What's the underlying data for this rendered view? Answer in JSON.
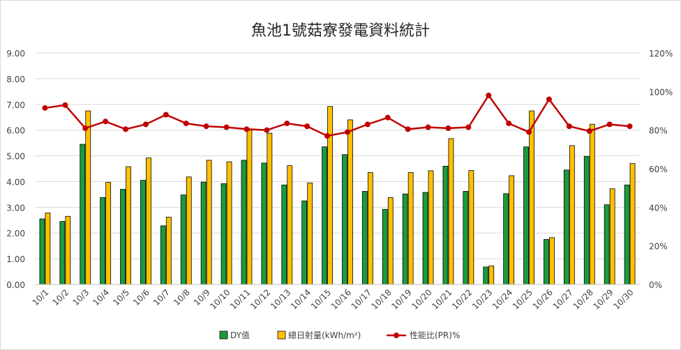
{
  "chart_data": {
    "type": "bar",
    "title": "魚池1號菇寮發電資料統計",
    "categories": [
      "10/1",
      "10/2",
      "10/3",
      "10/4",
      "10/5",
      "10/6",
      "10/7",
      "10/8",
      "10/9",
      "10/10",
      "10/11",
      "10/12",
      "10/13",
      "10/14",
      "10/15",
      "10/16",
      "10/17",
      "10/18",
      "10/19",
      "10/20",
      "10/21",
      "10/22",
      "10/23",
      "10/24",
      "10/25",
      "10/26",
      "10/27",
      "10/28",
      "10/29",
      "10/30"
    ],
    "y_left": {
      "min": 0,
      "max": 9,
      "step": 1,
      "ticks": [
        "0.00",
        "1.00",
        "2.00",
        "3.00",
        "4.00",
        "5.00",
        "6.00",
        "7.00",
        "8.00",
        "9.00"
      ]
    },
    "y_right": {
      "min": 0,
      "max": 120,
      "step": 20,
      "ticks": [
        "0%",
        "20%",
        "40%",
        "60%",
        "80%",
        "100%",
        "120%"
      ]
    },
    "grid": true,
    "legend_position": "bottom",
    "series": [
      {
        "name": "DY值",
        "type": "bar",
        "axis": "left",
        "color": "#1a9c3e",
        "values": [
          2.55,
          2.45,
          5.45,
          3.38,
          3.7,
          4.05,
          2.28,
          3.48,
          3.98,
          3.92,
          4.83,
          4.72,
          3.87,
          3.25,
          5.35,
          5.05,
          3.62,
          2.92,
          3.52,
          3.58,
          4.6,
          3.62,
          0.68,
          3.53,
          5.35,
          1.75,
          4.45,
          4.98,
          3.1,
          3.87
        ]
      },
      {
        "name": "總日射量(kWh/m²)",
        "type": "bar",
        "axis": "left",
        "color": "#ffc000",
        "values": [
          2.78,
          2.65,
          6.75,
          3.97,
          4.58,
          4.92,
          2.62,
          4.18,
          4.83,
          4.77,
          6.0,
          5.88,
          4.62,
          3.95,
          6.92,
          6.4,
          4.35,
          3.38,
          4.35,
          4.42,
          5.67,
          4.43,
          0.72,
          4.23,
          6.75,
          1.82,
          5.4,
          6.23,
          3.72,
          4.7
        ]
      },
      {
        "name": "性能比(PR)%",
        "type": "line",
        "axis": "right",
        "color": "#c00000",
        "values": [
          91.5,
          93,
          81,
          84.5,
          80.5,
          83,
          88,
          83.5,
          82,
          81.5,
          80.5,
          80,
          83.5,
          82,
          77,
          79,
          83,
          86.5,
          80.5,
          81.5,
          81,
          81.5,
          98,
          83.5,
          79,
          96,
          82,
          79.5,
          83,
          82
        ]
      }
    ]
  }
}
